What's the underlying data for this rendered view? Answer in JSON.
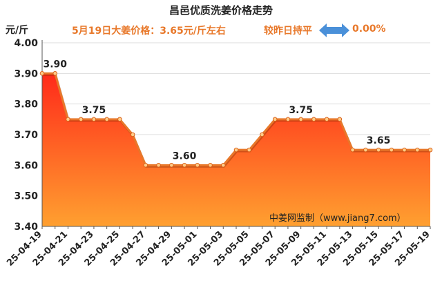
{
  "header": {
    "title": "昌邑优质洗姜价格走势",
    "unit": "元/斤",
    "subtitle": "5月19日大姜价格：3.65元/斤左右",
    "compare_label": "较昨日持平",
    "compare_value": "0.00%"
  },
  "watermark": "中姜网监制（www.jiang7.com）",
  "colors": {
    "line": "#e8782a",
    "area_top": "#ff2a1a",
    "area_bottom": "#ffa030",
    "arrow": "#4a90d9"
  },
  "chart_data": {
    "type": "area",
    "title": "昌邑优质洗姜价格走势",
    "ylabel": "元/斤",
    "ylim": [
      3.4,
      4.0
    ],
    "yticks": [
      "4.00",
      "3.90",
      "3.80",
      "3.70",
      "3.60",
      "3.50",
      "3.40"
    ],
    "grid": true,
    "x": [
      "25-04-19",
      "25-04-20",
      "25-04-21",
      "25-04-22",
      "25-04-23",
      "25-04-24",
      "25-04-25",
      "25-04-26",
      "25-04-27",
      "25-04-28",
      "25-04-29",
      "25-04-30",
      "25-05-01",
      "25-05-02",
      "25-05-03",
      "25-05-04",
      "25-05-05",
      "25-05-06",
      "25-05-07",
      "25-05-08",
      "25-05-09",
      "25-05-10",
      "25-05-11",
      "25-05-12",
      "25-05-13",
      "25-05-14",
      "25-05-15",
      "25-05-16",
      "25-05-17",
      "25-05-18",
      "25-05-19"
    ],
    "xtick_labels": [
      "25-04-19",
      "25-04-21",
      "25-04-23",
      "25-04-25",
      "25-04-27",
      "25-04-29",
      "25-05-01",
      "25-05-03",
      "25-05-05",
      "25-05-07",
      "25-05-09",
      "25-05-11",
      "25-05-13",
      "25-05-15",
      "25-05-17",
      "25-05-19"
    ],
    "values": [
      3.9,
      3.9,
      3.75,
      3.75,
      3.75,
      3.75,
      3.75,
      3.7,
      3.6,
      3.6,
      3.6,
      3.6,
      3.6,
      3.6,
      3.6,
      3.65,
      3.65,
      3.7,
      3.75,
      3.75,
      3.75,
      3.75,
      3.75,
      3.75,
      3.65,
      3.65,
      3.65,
      3.65,
      3.65,
      3.65,
      3.65
    ],
    "annotations": [
      {
        "index": 1,
        "text": "3.90"
      },
      {
        "index": 4,
        "text": "3.75"
      },
      {
        "index": 11,
        "text": "3.60"
      },
      {
        "index": 20,
        "text": "3.75"
      },
      {
        "index": 26,
        "text": "3.65"
      }
    ]
  }
}
